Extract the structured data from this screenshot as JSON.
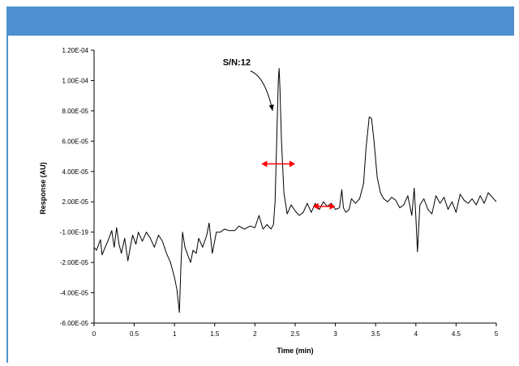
{
  "header": {
    "color": "#4f8fcf"
  },
  "chart_data": {
    "type": "line",
    "title": "",
    "xlabel": "Time (min)",
    "ylabel": "Response (AU)",
    "xlim": [
      0,
      5
    ],
    "ylim": [
      -6e-05,
      0.00012
    ],
    "x_ticks": [
      0,
      0.5,
      1,
      1.5,
      2,
      2.5,
      3,
      3.5,
      4,
      4.5,
      5
    ],
    "x_tick_labels": [
      "0",
      "0.5",
      "1",
      "1.5",
      "2",
      "2.5",
      "3",
      "3.5",
      "4",
      "4.5",
      "5"
    ],
    "y_ticks": [
      -6e-05,
      -4e-05,
      -2e-05,
      0,
      2e-05,
      4e-05,
      6e-05,
      8e-05,
      0.0001,
      0.00012
    ],
    "y_tick_labels": [
      "-6.00E-05",
      "-4.00E-05",
      "-2.00E-05",
      "-1.00E-19",
      "2.00E-05",
      "4.00E-05",
      "6.00E-05",
      "8.00E-05",
      "1.00E-04",
      "1.20E-04"
    ],
    "grid": false,
    "legend": "none",
    "series": [
      {
        "color": "#000000",
        "x": [
          0,
          0.03,
          0.08,
          0.1,
          0.13,
          0.17,
          0.22,
          0.25,
          0.28,
          0.31,
          0.34,
          0.38,
          0.42,
          0.45,
          0.48,
          0.52,
          0.55,
          0.6,
          0.65,
          0.7,
          0.75,
          0.8,
          0.85,
          0.9,
          0.95,
          1.0,
          1.03,
          1.06,
          1.08,
          1.1,
          1.13,
          1.17,
          1.2,
          1.23,
          1.27,
          1.3,
          1.35,
          1.4,
          1.43,
          1.47,
          1.52,
          1.57,
          1.62,
          1.68,
          1.75,
          1.8,
          1.87,
          1.94,
          2.0,
          2.05,
          2.1,
          2.15,
          2.2,
          2.23,
          2.25,
          2.27,
          2.29,
          2.3,
          2.31,
          2.33,
          2.36,
          2.4,
          2.45,
          2.5,
          2.55,
          2.6,
          2.65,
          2.7,
          2.75,
          2.8,
          2.85,
          2.9,
          2.95,
          3.0,
          3.05,
          3.08,
          3.1,
          3.13,
          3.17,
          3.2,
          3.25,
          3.3,
          3.35,
          3.38,
          3.42,
          3.45,
          3.48,
          3.52,
          3.56,
          3.6,
          3.65,
          3.7,
          3.75,
          3.8,
          3.85,
          3.9,
          3.95,
          3.98,
          4.0,
          4.02,
          4.05,
          4.1,
          4.15,
          4.2,
          4.25,
          4.3,
          4.35,
          4.4,
          4.45,
          4.5,
          4.55,
          4.6,
          4.65,
          4.7,
          4.75,
          4.8,
          4.85,
          4.9,
          4.95,
          5.0
        ],
        "y": [
          -1e-05,
          -1.2e-05,
          -5e-06,
          -1.5e-05,
          -1.1e-05,
          -6e-06,
          1e-06,
          -1e-05,
          3e-06,
          -8e-06,
          -1.4e-05,
          -4e-06,
          -1.9e-05,
          -1e-05,
          -2e-06,
          -8e-06,
          0,
          -6e-06,
          0,
          -4e-06,
          -1e-05,
          -2e-06,
          -6e-06,
          -1.4e-05,
          -2e-05,
          -3e-05,
          -3.8e-05,
          -5.3e-05,
          -2.2e-05,
          0,
          -1e-05,
          -1.6e-05,
          -2e-05,
          -1.2e-05,
          -1.4e-05,
          -4e-06,
          -1e-05,
          -2e-06,
          6e-06,
          -1.4e-05,
          0,
          0,
          2e-06,
          1e-06,
          1e-06,
          4e-06,
          2e-06,
          4e-06,
          3e-06,
          1.1e-05,
          2e-06,
          5e-06,
          2e-06,
          5e-06,
          2e-05,
          6e-05,
          0.0001,
          0.000108,
          9.5e-05,
          6e-05,
          2.6e-05,
          1.2e-05,
          1.8e-05,
          1.4e-05,
          1.1e-05,
          1.3e-05,
          1.9e-05,
          1.3e-05,
          1.9e-05,
          1.5e-05,
          2e-05,
          1.7e-05,
          1.9e-05,
          1.5e-05,
          1.6e-05,
          2.8e-05,
          1.6e-05,
          1.3e-05,
          1.5e-05,
          2.2e-05,
          1.9e-05,
          2.2e-05,
          3.2e-05,
          5.5e-05,
          7.6e-05,
          7.5e-05,
          6e-05,
          3.6e-05,
          2.6e-05,
          2.2e-05,
          2e-05,
          2.3e-05,
          2.1e-05,
          1.6e-05,
          1.8e-05,
          2.4e-05,
          1.1e-05,
          2.9e-05,
          1e-05,
          -1.3e-05,
          1.8e-05,
          2.2e-05,
          1.5e-05,
          1.2e-05,
          2.4e-05,
          1.9e-05,
          2.3e-05,
          1.5e-05,
          2e-05,
          1.3e-05,
          2.5e-05,
          2.1e-05,
          1.9e-05,
          2.2e-05,
          1.8e-05,
          2.4e-05,
          1.9e-05,
          2.6e-05,
          2.3e-05,
          2e-05
        ]
      }
    ],
    "annotations": [
      {
        "text": "S/N:12",
        "x": 1.6,
        "y": 0.00011,
        "points_to": [
          2.22,
          8e-05
        ]
      }
    ],
    "markers": [
      {
        "kind": "double-arrow",
        "color": "#ff0000",
        "x1": 2.08,
        "x2": 2.5,
        "y": 4.5e-05
      },
      {
        "kind": "double-arrow",
        "color": "#ff0000",
        "x1": 2.72,
        "x2": 3.0,
        "y": 1.7e-05
      }
    ]
  }
}
